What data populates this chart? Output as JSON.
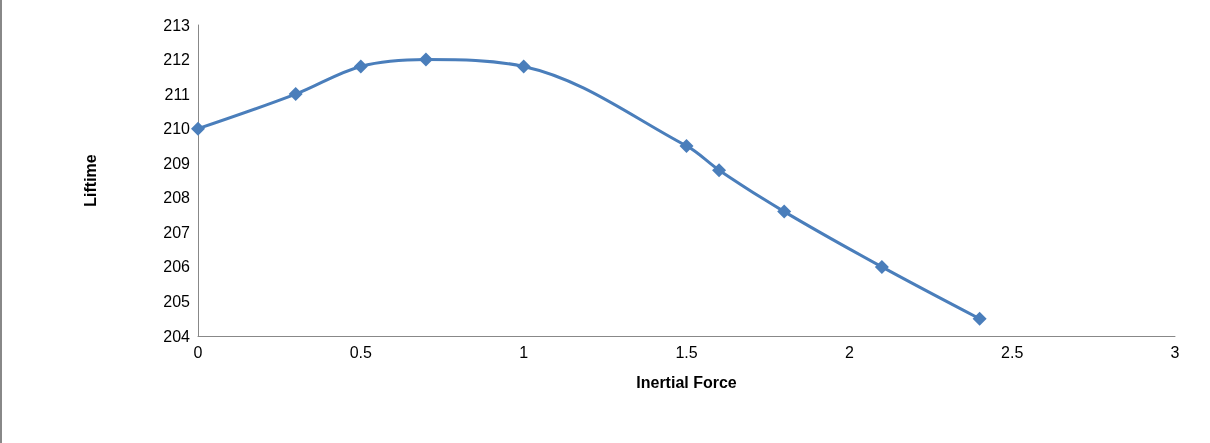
{
  "chart_data": {
    "type": "line",
    "xlabel": "Inertial Force",
    "ylabel": "Liftime",
    "x": [
      0,
      0.3,
      0.5,
      0.7,
      1,
      1.5,
      1.6,
      1.8,
      2.1,
      2.4
    ],
    "series": [
      {
        "color": "#4a7ebb",
        "values": [
          210,
          211,
          211.8,
          212,
          211.8,
          209.5,
          208.8,
          207.6,
          206,
          204.5
        ]
      }
    ],
    "xlim": [
      0,
      3
    ],
    "xticks": [
      0,
      0.5,
      1,
      1.5,
      2,
      2.5,
      3
    ],
    "ylim": [
      204,
      213
    ],
    "yticks": [
      204,
      205,
      206,
      207,
      208,
      209,
      210,
      211,
      212,
      213
    ],
    "grid": false,
    "marker": "diamond",
    "line_style": "solid"
  }
}
